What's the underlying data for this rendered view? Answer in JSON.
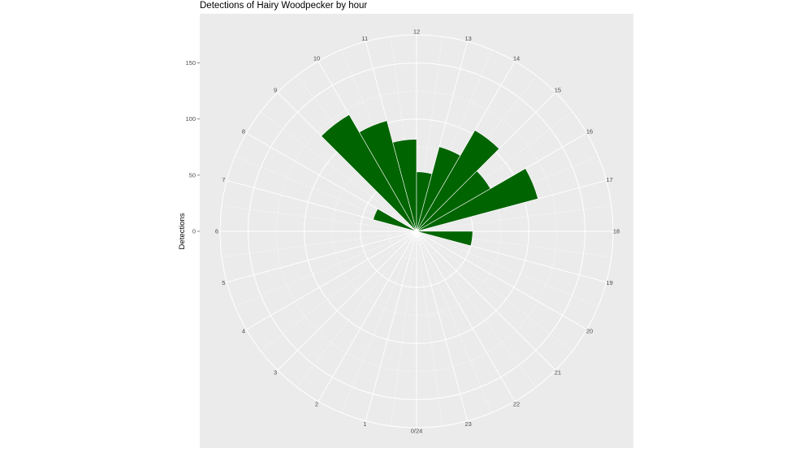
{
  "chart_data": {
    "type": "bar",
    "coord": "polar",
    "title": "Detections of Hairy Woodpecker by hour",
    "xlabel": "",
    "ylabel": "Detections",
    "categories": [
      0,
      1,
      2,
      3,
      4,
      5,
      6,
      7,
      8,
      9,
      10,
      11,
      12,
      13,
      14,
      15,
      16,
      17,
      18,
      19,
      20,
      21,
      22,
      23
    ],
    "values": [
      0,
      0,
      0,
      0,
      0,
      0,
      0,
      40,
      0,
      120,
      102,
      82,
      53,
      78,
      104,
      76,
      112,
      0,
      50,
      0,
      0,
      0,
      0,
      0
    ],
    "y_ticks": [
      0,
      50,
      100,
      150
    ],
    "y_tick_labels": [
      "0",
      "50",
      "100",
      "150"
    ],
    "ylim": [
      0,
      175
    ],
    "angular_labels": [
      "0/24",
      "1",
      "2",
      "3",
      "4",
      "5",
      "6",
      "7",
      "8",
      "9",
      "10",
      "11",
      "12",
      "13",
      "14",
      "15",
      "16",
      "17",
      "18",
      "19",
      "20",
      "21",
      "22",
      "23"
    ],
    "bar_color": "#006400",
    "panel_background": "#ebebeb",
    "grid": true
  }
}
